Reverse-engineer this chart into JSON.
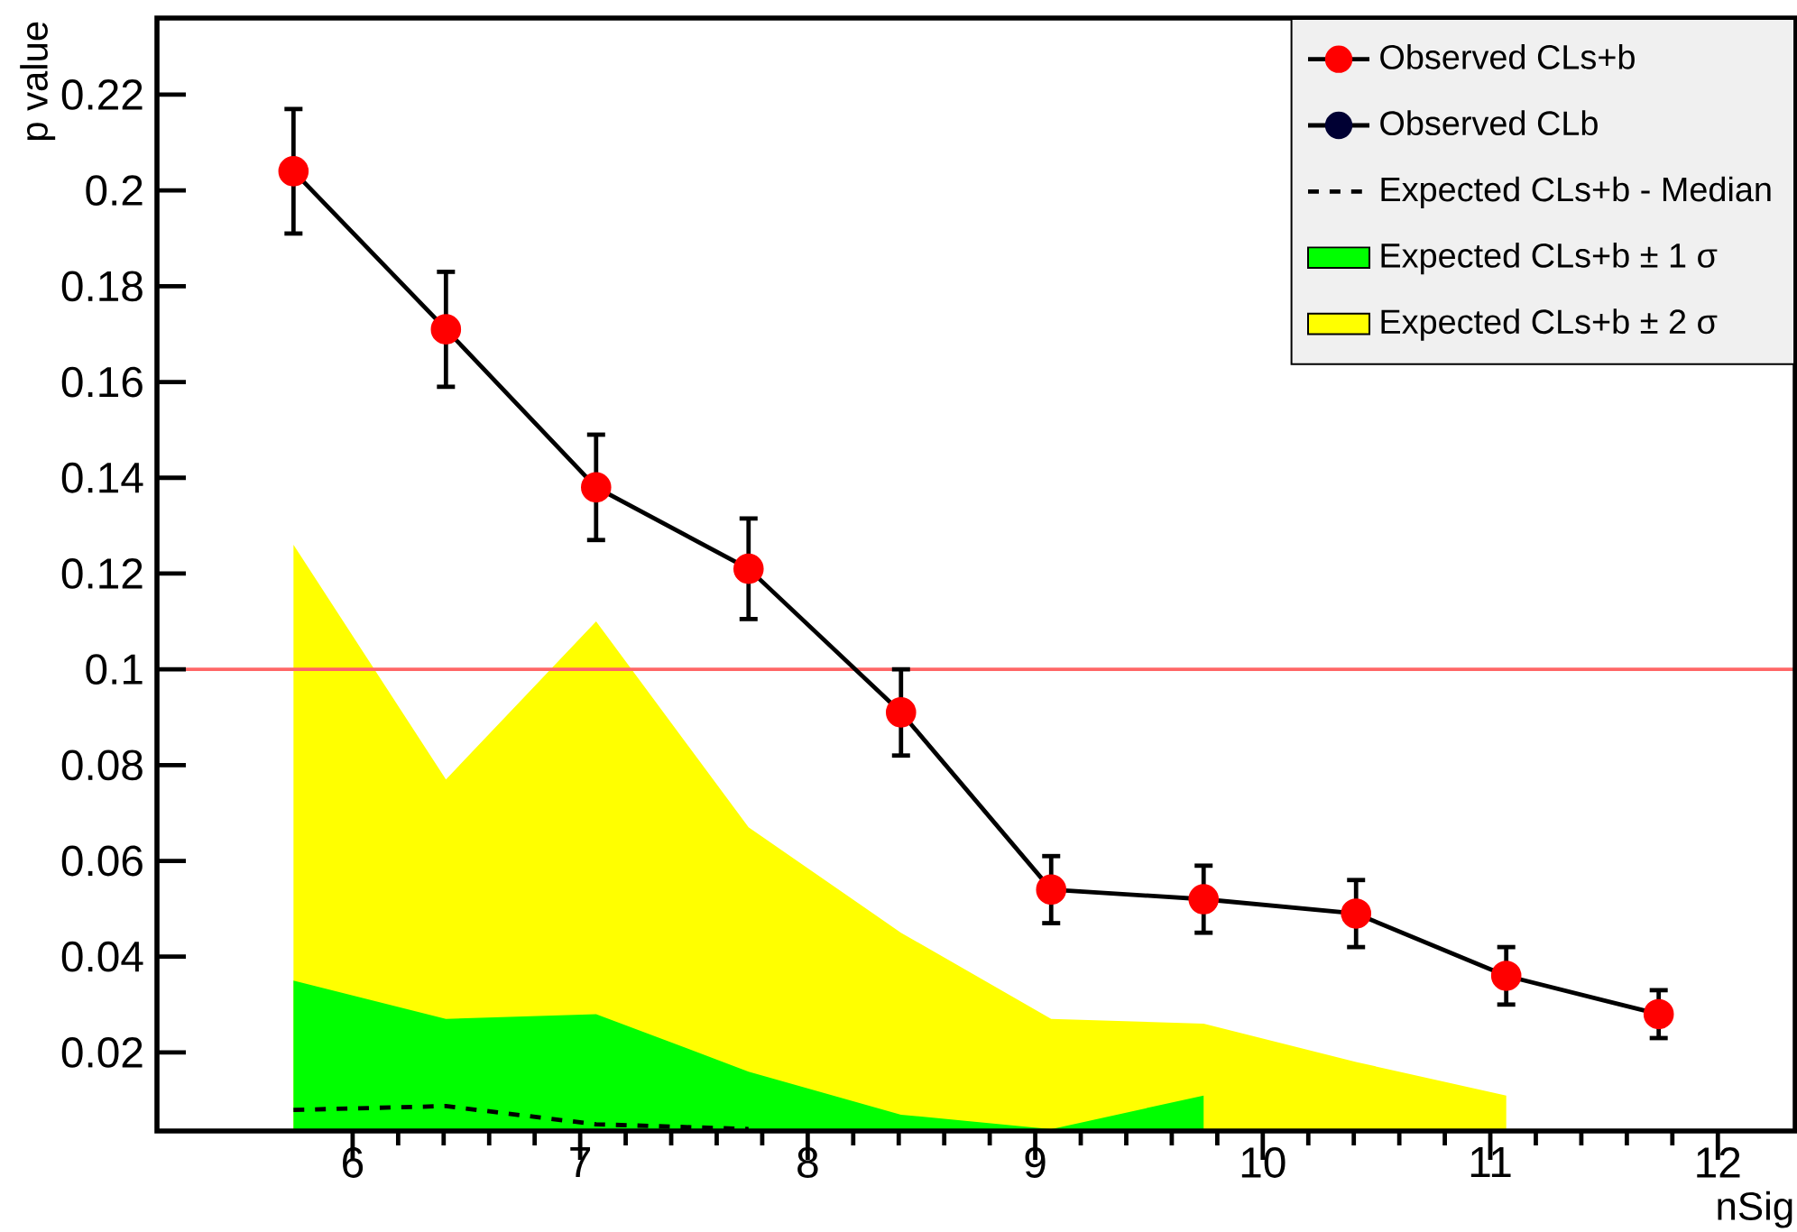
{
  "chart_data": {
    "type": "line",
    "xlabel": "nSig",
    "ylabel": "p value",
    "xlim": [
      5.14,
      12.34
    ],
    "ylim": [
      0.0036,
      0.236
    ],
    "xticks": [
      6,
      7,
      8,
      9,
      10,
      11,
      12
    ],
    "yticks": [
      0.02,
      0.04,
      0.06,
      0.08,
      0.1,
      0.12,
      0.14,
      0.16,
      0.18,
      0.2,
      0.22
    ],
    "legend": "top right",
    "x": [
      5.74,
      6.41,
      7.07,
      7.74,
      8.41,
      9.07,
      9.74,
      10.41,
      11.07,
      11.74
    ],
    "series": [
      {
        "name": "Observed CLs+b",
        "color": "#ff0000",
        "marker": "circle",
        "values": [
          0.204,
          0.171,
          0.138,
          0.121,
          0.091,
          0.054,
          0.052,
          0.049,
          0.036,
          0.028
        ],
        "errors": [
          0.013,
          0.012,
          0.011,
          0.0105,
          0.009,
          0.007,
          0.007,
          0.007,
          0.006,
          0.005
        ]
      },
      {
        "name": "Observed CLb",
        "color": "#000033",
        "marker": "circle",
        "values": [
          null,
          null,
          null,
          null,
          null,
          null,
          null,
          null,
          null,
          null
        ]
      },
      {
        "name": "Expected CLs+b - Median",
        "color": "#000000",
        "line_style": "dashed",
        "values": [
          0.008,
          0.0088,
          0.005,
          0.004,
          null,
          null,
          null,
          null,
          null,
          null
        ]
      },
      {
        "name": "Expected CLs+b ± 1 σ",
        "type": "area",
        "color": "#00ff00",
        "values": [
          0.035,
          0.027,
          0.028,
          0.016,
          0.007,
          0.004,
          0.011,
          null,
          null,
          null
        ]
      },
      {
        "name": "Expected CLs+b ± 2 σ",
        "type": "area",
        "color": "#ffff00",
        "values": [
          0.126,
          0.077,
          0.11,
          0.067,
          0.045,
          0.027,
          0.026,
          0.018,
          0.011,
          null
        ]
      }
    ],
    "ref_lines": [
      {
        "axis": "y",
        "value": 0.1,
        "color": "#ff6666"
      }
    ]
  }
}
